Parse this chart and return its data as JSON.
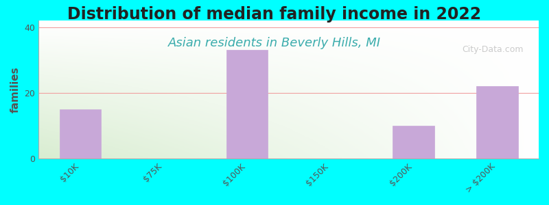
{
  "title": "Distribution of median family income in 2022",
  "subtitle": "Asian residents in Beverly Hills, MI",
  "xlabel": "",
  "ylabel": "families",
  "categories": [
    "$10K",
    "$75K",
    "$100K",
    "$150K",
    "$200K",
    "> $200K"
  ],
  "values": [
    15,
    0,
    33,
    0,
    10,
    22
  ],
  "bar_color": "#c8a8d8",
  "bar_edge_color": "#c8a8d8",
  "ylim": [
    0,
    42
  ],
  "yticks": [
    0,
    20,
    40
  ],
  "background_color": "#00FFFF",
  "grid_color": "#f0a0a0",
  "title_fontsize": 17,
  "subtitle_fontsize": 13,
  "subtitle_color": "#3aacac",
  "ylabel_fontsize": 11,
  "tick_fontsize": 9,
  "watermark_text": "City-Data.com",
  "watermark_color": "#aaaaaa"
}
